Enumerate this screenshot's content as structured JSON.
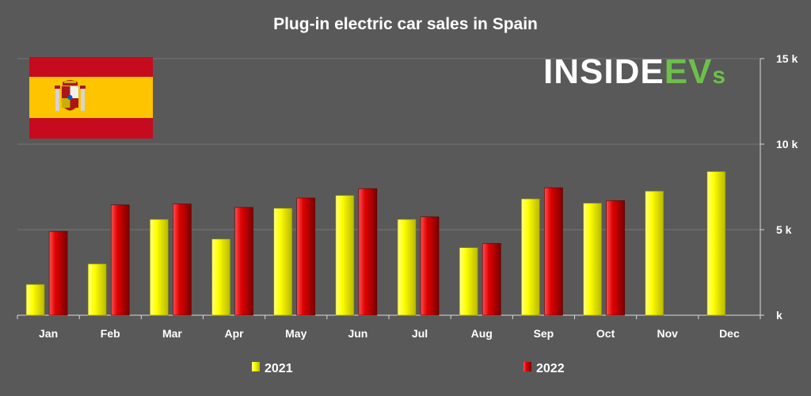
{
  "logo": {
    "brand_main": "INSIDE",
    "brand_accent": "EV",
    "brand_suffix": "s"
  },
  "flag": {
    "name": "spain-flag"
  },
  "colors": {
    "background": "#595959",
    "gridline": "#757575",
    "axis": "#d9d9d9",
    "series_2021": "#ffff00",
    "series_2022": "#e00000",
    "brand_white": "#ffffff",
    "brand_green": "#6cc04a",
    "flag_red": "#c60b1e",
    "flag_yellow": "#ffc400"
  },
  "chart_data": {
    "type": "bar",
    "title": "Plug-in electric car sales in Spain",
    "categories": [
      "Jan",
      "Feb",
      "Mar",
      "Apr",
      "May",
      "Jun",
      "Jul",
      "Aug",
      "Sep",
      "Oct",
      "Nov",
      "Dec"
    ],
    "series": [
      {
        "name": "2021",
        "color": "#ffff00",
        "values": [
          1800,
          3000,
          5600,
          4450,
          6250,
          7000,
          5600,
          3950,
          6800,
          6550,
          7250,
          8400
        ]
      },
      {
        "name": "2022",
        "color": "#e00000",
        "values": [
          4900,
          6450,
          6500,
          6300,
          6850,
          7400,
          5750,
          4200,
          7450,
          6700,
          null,
          null
        ]
      }
    ],
    "ylim": [
      0,
      15000
    ],
    "yticks": [
      {
        "value": 0,
        "label": "k"
      },
      {
        "value": 5000,
        "label": "5 k"
      },
      {
        "value": 10000,
        "label": "10 k"
      },
      {
        "value": 15000,
        "label": "15 k"
      }
    ],
    "y_axis_side": "right",
    "grid": true,
    "legend_position": "bottom"
  }
}
